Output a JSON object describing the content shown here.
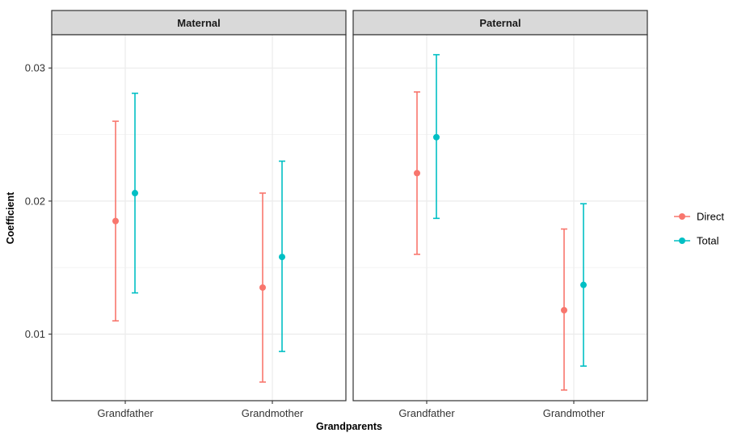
{
  "chart_data": {
    "type": "scatter",
    "subtype": "point-with-error-bars",
    "facets": [
      "Maternal",
      "Paternal"
    ],
    "categories": [
      "Grandfather",
      "Grandmother"
    ],
    "xlabel": "Grandparents",
    "ylabel": "Coefficient",
    "ylim": [
      0.005,
      0.0325
    ],
    "yticks": [
      0.01,
      0.02,
      0.03
    ],
    "ytick_labels": [
      "0.01",
      "0.02",
      "0.03"
    ],
    "grid": true,
    "legend_position": "right",
    "series": [
      {
        "name": "Direct",
        "color": "#F8766D",
        "points": [
          {
            "facet": "Maternal",
            "category": "Grandfather",
            "estimate": 0.0185,
            "lower": 0.011,
            "upper": 0.026
          },
          {
            "facet": "Maternal",
            "category": "Grandmother",
            "estimate": 0.0135,
            "lower": 0.0064,
            "upper": 0.0206
          },
          {
            "facet": "Paternal",
            "category": "Grandfather",
            "estimate": 0.0221,
            "lower": 0.016,
            "upper": 0.0282
          },
          {
            "facet": "Paternal",
            "category": "Grandmother",
            "estimate": 0.0118,
            "lower": 0.0058,
            "upper": 0.0179
          }
        ]
      },
      {
        "name": "Total",
        "color": "#00BFC4",
        "points": [
          {
            "facet": "Maternal",
            "category": "Grandfather",
            "estimate": 0.0206,
            "lower": 0.0131,
            "upper": 0.0281
          },
          {
            "facet": "Maternal",
            "category": "Grandmother",
            "estimate": 0.0158,
            "lower": 0.0087,
            "upper": 0.023
          },
          {
            "facet": "Paternal",
            "category": "Grandfather",
            "estimate": 0.0248,
            "lower": 0.0187,
            "upper": 0.031
          },
          {
            "facet": "Paternal",
            "category": "Grandmother",
            "estimate": 0.0137,
            "lower": 0.0076,
            "upper": 0.0198
          }
        ]
      }
    ],
    "colors": {
      "strip_fill": "#d9d9d9",
      "panel_border": "#333333",
      "grid_major": "#ebebeb",
      "grid_minor": "#f4f4f4"
    }
  }
}
